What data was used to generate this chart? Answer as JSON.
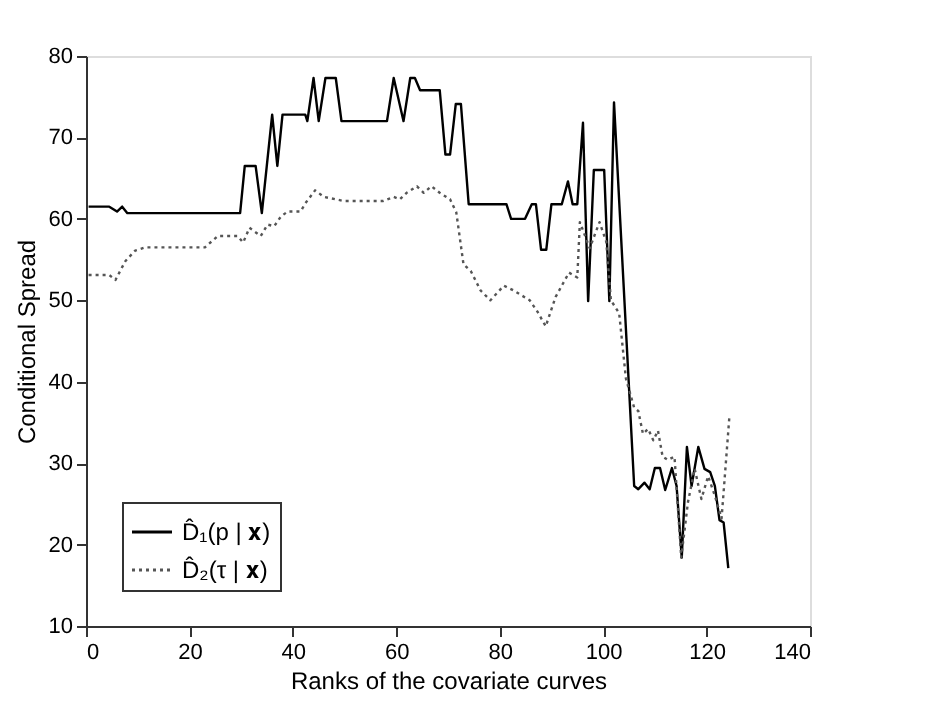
{
  "chart_data": {
    "type": "line",
    "xlabel": "Ranks of the covariate curves",
    "ylabel": "Conditional Spread",
    "xlim": [
      0,
      140
    ],
    "xticks": [
      0,
      20,
      40,
      60,
      80,
      100,
      120,
      140
    ],
    "ylim": [
      10,
      80
    ],
    "yticks": [
      10,
      20,
      30,
      40,
      50,
      60,
      70,
      80
    ],
    "grid": false,
    "legend": "bottom left",
    "marker": "none",
    "series": [
      {
        "name": "D̂₁(p | 𝐱)",
        "color": "#000000",
        "line_style": "solid",
        "x": [
          0.5,
          4.5,
          6,
          7,
          8,
          29.8,
          30.7,
          32.8,
          34,
          36,
          37,
          38,
          42.4,
          42.8,
          44,
          45,
          46.3,
          48.3,
          49.4,
          58.2,
          59.5,
          61.4,
          62.7,
          63.6,
          64.6,
          68.4,
          69.5,
          70.4,
          71.5,
          72.5,
          74,
          81.3,
          82.2,
          84.9,
          86.2,
          87,
          88,
          89,
          90,
          92,
          93.2,
          94.1,
          95,
          96.1,
          97.1,
          98.2,
          100.2,
          101.2,
          102.1,
          106,
          106.8,
          108,
          109,
          110,
          111,
          112,
          113.3,
          114.2,
          115.2,
          116.2,
          117.1,
          118.4,
          119.6,
          120.7,
          121.6,
          122.5,
          123.3,
          124.2
        ],
        "values": [
          61.5,
          61.5,
          60.9,
          61.5,
          60.7,
          60.7,
          66.5,
          66.5,
          60.7,
          72.8,
          66.5,
          72.8,
          72.8,
          72,
          77.3,
          72,
          77.3,
          77.3,
          72,
          72,
          77.3,
          72,
          77.3,
          77.3,
          75.8,
          75.8,
          67.9,
          67.9,
          74.1,
          74.1,
          61.8,
          61.8,
          60,
          60,
          61.8,
          61.8,
          56.2,
          56.2,
          61.8,
          61.8,
          64.6,
          61.8,
          61.8,
          71.8,
          49.9,
          66,
          66,
          49.9,
          74.3,
          27.2,
          26.8,
          27.6,
          26.8,
          29.4,
          29.4,
          26.7,
          29.4,
          27.2,
          18.4,
          32,
          27.2,
          32,
          29.3,
          28.9,
          27.2,
          23,
          22.7,
          17.1
        ]
      },
      {
        "name": "D̂₂(τ | 𝐱)",
        "color": "#555555",
        "line_style": "dotted",
        "x": [
          0.5,
          4.5,
          5.7,
          7.6,
          9.5,
          11.5,
          23,
          25.5,
          29.3,
          30.4,
          31.6,
          33.8,
          35.1,
          36.4,
          37.7,
          39,
          41.5,
          42.4,
          44.3,
          46,
          49.8,
          57.5,
          59.5,
          60.7,
          62,
          64,
          65.3,
          66.8,
          68.4,
          70.4,
          71.6,
          73,
          74.4,
          76.3,
          78.2,
          80.8,
          82.7,
          85.8,
          87.3,
          88.9,
          90.8,
          93.4,
          95,
          95.5,
          97.4,
          99.3,
          100.6,
          101.5,
          103.1,
          104.4,
          106,
          106.8,
          107.7,
          108.7,
          109.7,
          110.6,
          111.5,
          112.5,
          113.8,
          115.1,
          116.4,
          117.7,
          119,
          120.3,
          121.6,
          122.9,
          124.4
        ],
        "values": [
          53.1,
          53.1,
          52.5,
          54.8,
          56.1,
          56.5,
          56.5,
          57.9,
          57.9,
          57.1,
          58.9,
          57.9,
          59.3,
          59.1,
          60.3,
          60.9,
          60.9,
          61.9,
          63.5,
          62.7,
          62.2,
          62.2,
          62.7,
          62.4,
          63.2,
          64,
          63.2,
          64,
          63.2,
          62.4,
          60.8,
          54.4,
          53.6,
          51.2,
          50,
          51.8,
          51.2,
          50,
          48.6,
          46.8,
          50.4,
          53.4,
          52.8,
          59.6,
          56.4,
          59.6,
          57.2,
          50,
          48.4,
          40.4,
          36.8,
          36.4,
          33.6,
          34.2,
          32.8,
          34,
          30.8,
          30.4,
          30.8,
          18.4,
          25.2,
          29.3,
          25.6,
          28.4,
          26,
          23.2,
          35.6
        ]
      }
    ]
  }
}
